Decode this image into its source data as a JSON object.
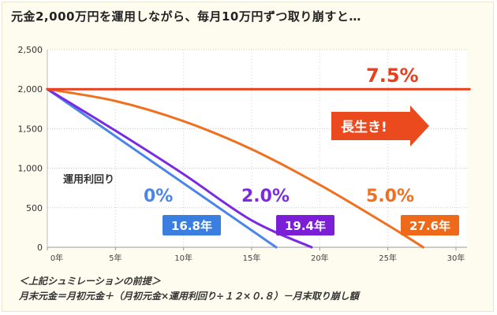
{
  "title": "元金2,000万円を運用しながら、毎月10万円ずつ取り崩すと…",
  "chart_data": {
    "type": "line",
    "xlim": [
      0,
      30
    ],
    "ylim": [
      0,
      2500
    ],
    "x_ticks": [
      0,
      5,
      10,
      15,
      20,
      25,
      30
    ],
    "x_tick_labels": [
      "0年",
      "5年",
      "10年",
      "15年",
      "20年",
      "25年",
      "30年"
    ],
    "y_ticks": [
      0,
      500,
      1000,
      1500,
      2000,
      2500
    ],
    "y_tick_labels": [
      "0",
      "500",
      "1,000",
      "1,500",
      "2,000",
      "2,500"
    ],
    "legend_title": "運用利回り",
    "series": [
      {
        "name": "0%",
        "color": "#4a86e8",
        "points": [
          [
            0,
            2000
          ],
          [
            16.8,
            0
          ]
        ],
        "end_label": "16.8年"
      },
      {
        "name": "2.0%",
        "color": "#7a2be0",
        "points": [
          [
            0,
            2000
          ],
          [
            5,
            1475
          ],
          [
            10,
            925
          ],
          [
            15,
            340
          ],
          [
            19.4,
            0
          ]
        ],
        "end_label": "19.4年"
      },
      {
        "name": "5.0%",
        "color": "#f07020",
        "points": [
          [
            0,
            2000
          ],
          [
            5,
            1850
          ],
          [
            10,
            1595
          ],
          [
            15,
            1240
          ],
          [
            20,
            790
          ],
          [
            25,
            280
          ],
          [
            27.6,
            0
          ]
        ],
        "end_label": "27.6年"
      },
      {
        "name": "7.5%",
        "color": "#e8401c",
        "points": [
          [
            0,
            2000
          ],
          [
            31,
            2000
          ]
        ],
        "end_label": ""
      }
    ],
    "annotation": "長生き!"
  },
  "notes": {
    "heading": "＜上記シュミレーションの前提＞",
    "formula": "月末元金＝月初元金＋（月初元金×運用利回り÷１２×０.８）－月末取り崩し額"
  }
}
